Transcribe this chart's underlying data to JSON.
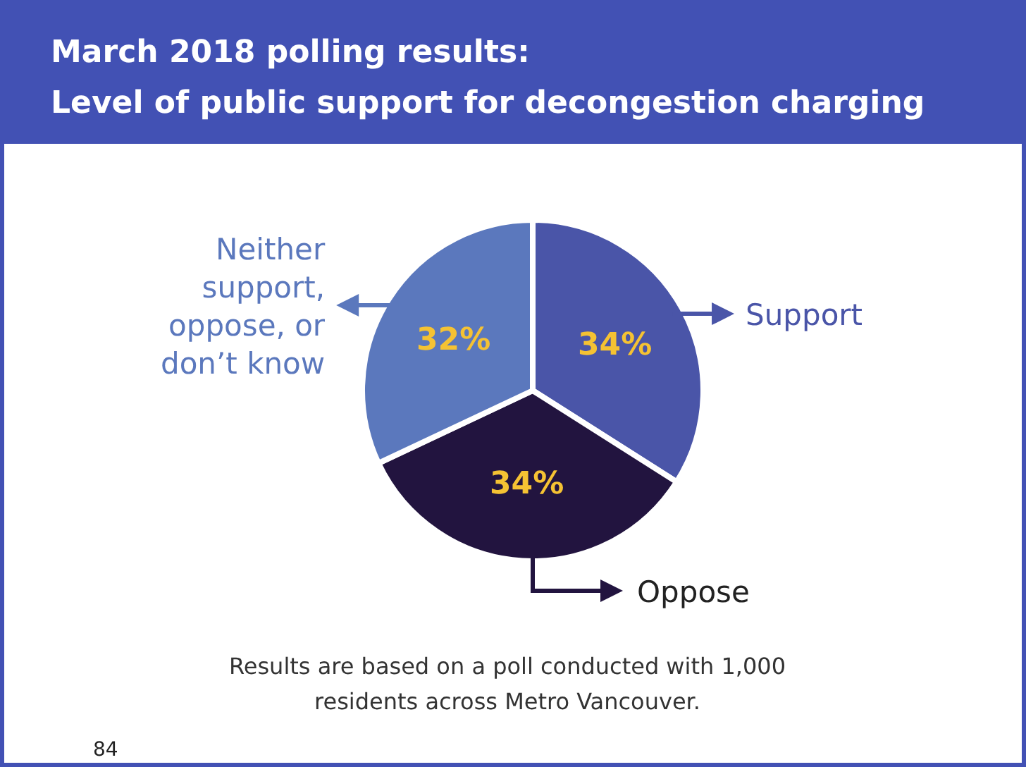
{
  "chart_data": {
    "type": "pie",
    "title": "March 2018 polling results:",
    "subtitle": "Level of public support for decongestion charging",
    "categories": [
      "Support",
      "Oppose",
      "Neither support, oppose, or don’t know"
    ],
    "values": [
      34,
      34,
      32
    ],
    "colors": [
      "#4a55a8",
      "#22143f",
      "#5b78bd"
    ],
    "value_labels": [
      "34%",
      "34%",
      "32%"
    ],
    "legend": "right",
    "annotations": [
      "Results are based on a poll conducted with 1,000 residents across Metro Vancouver.",
      "84"
    ]
  }
}
